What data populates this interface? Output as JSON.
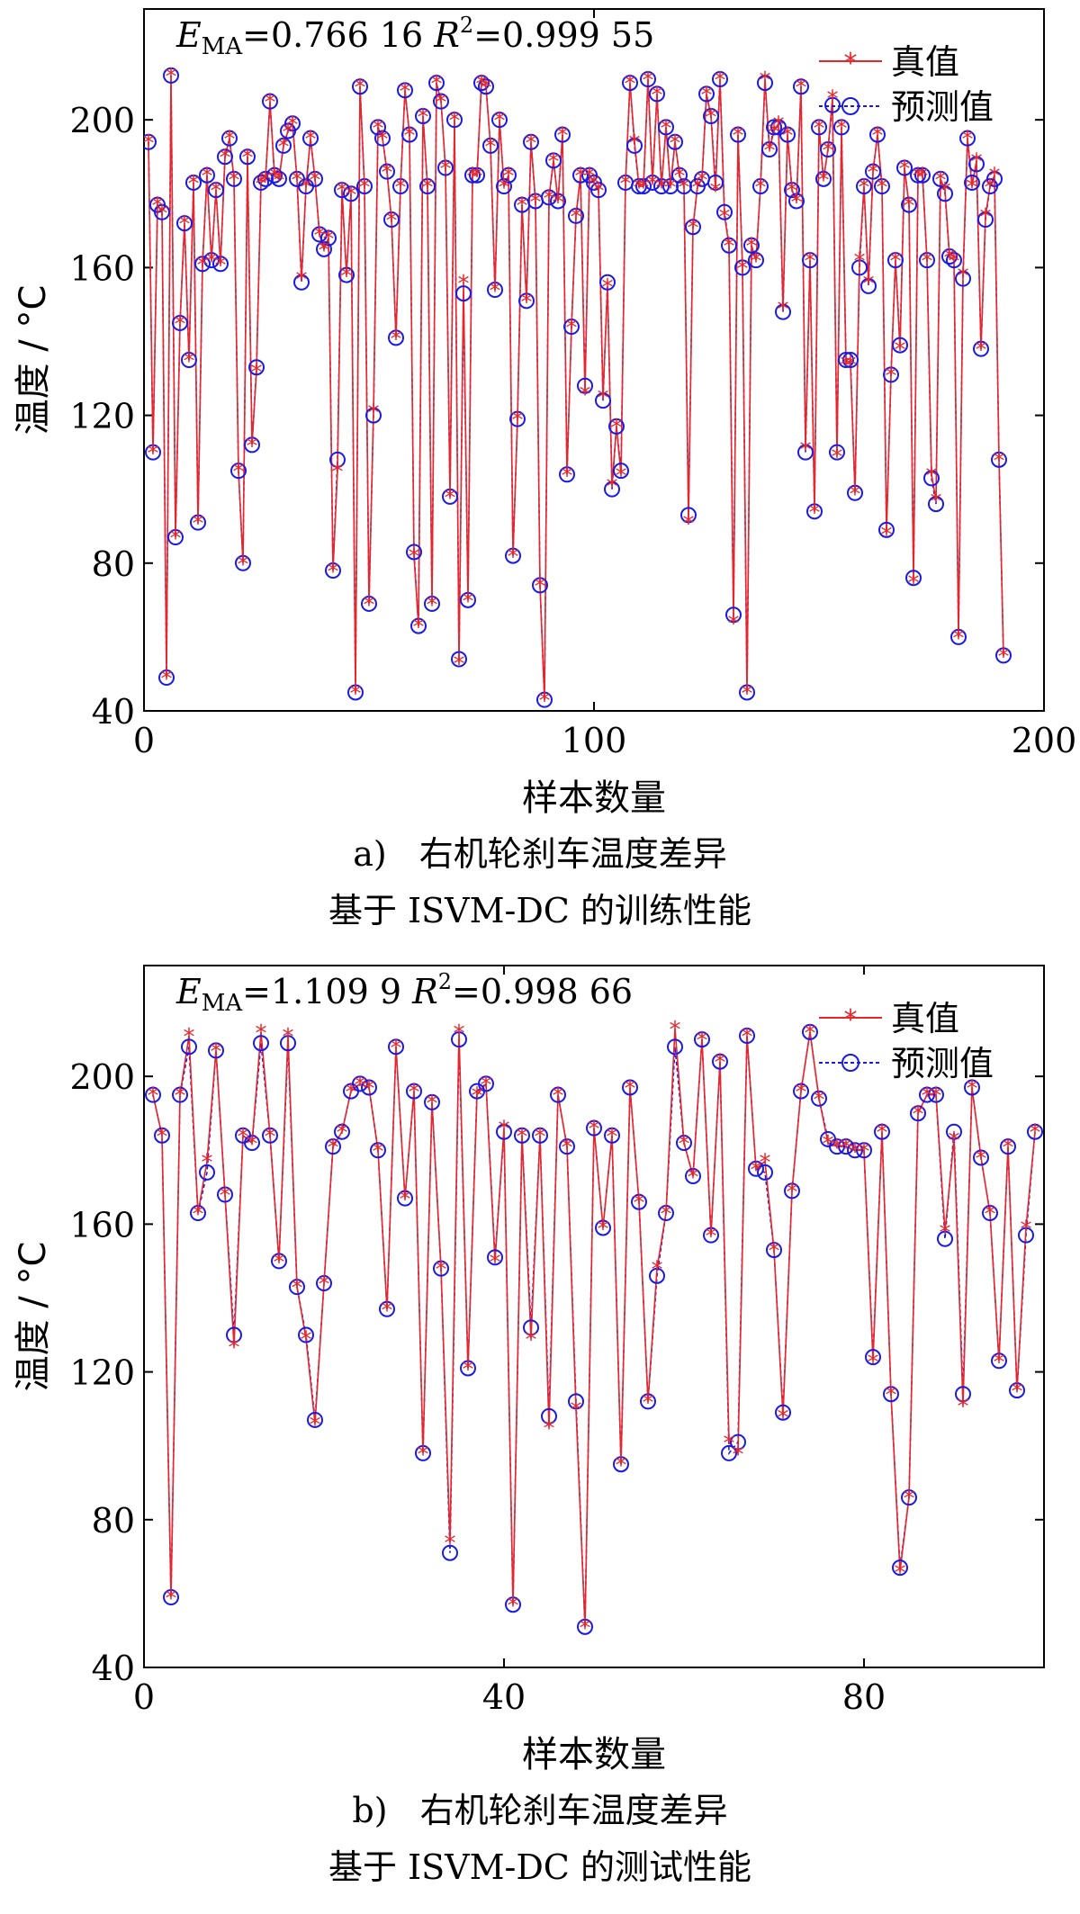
{
  "chart_data": [
    {
      "type": "line",
      "title": "E_MA=0.766 16 R²=0.999 55",
      "metrics": {
        "ema_label": "E",
        "ema_sub": "MA",
        "ema_value": "=0.766 16",
        "r2_label": "R",
        "r2_sup": "2",
        "r2_value": "=0.999 55"
      },
      "xlabel": "样本数量",
      "ylabel": "温度 / °C",
      "xlim": [
        0,
        200
      ],
      "ylim": [
        40,
        230
      ],
      "xticks": [
        0,
        100,
        200
      ],
      "xtick_labels": [
        "0",
        "100",
        "200"
      ],
      "yticks": [
        40,
        80,
        120,
        160,
        200
      ],
      "ytick_labels": [
        "40",
        "80",
        "120",
        "160",
        "200"
      ],
      "legend": {
        "position": "top-right",
        "entries": [
          "真值",
          "预测值"
        ]
      },
      "series": [
        {
          "name": "真值",
          "color": "#e8262a",
          "marker": "star",
          "values": [
            194,
            110,
            177,
            175,
            49,
            212,
            87,
            145,
            172,
            135,
            183,
            91,
            161,
            185,
            162,
            181,
            161,
            190,
            195,
            184,
            105,
            80,
            190,
            112,
            132,
            183,
            184,
            205,
            185,
            184,
            193,
            197,
            199,
            184,
            157,
            182,
            195,
            184,
            169,
            165,
            168,
            78,
            105,
            181,
            158,
            180,
            45,
            209,
            182,
            69,
            121,
            198,
            195,
            186,
            173,
            141,
            182,
            208,
            196,
            82,
            63,
            201,
            182,
            69,
            210,
            205,
            187,
            98,
            200,
            53,
            156,
            70,
            185,
            185,
            210,
            209,
            193,
            154,
            200,
            182,
            185,
            82,
            119,
            177,
            151,
            194,
            178,
            74,
            43,
            179,
            189,
            178,
            196,
            104,
            144,
            174,
            185,
            126,
            185,
            183,
            181,
            125,
            155,
            101,
            117,
            104,
            183,
            210,
            194,
            182,
            182,
            211,
            183,
            207,
            182,
            198,
            182,
            194,
            185,
            182,
            91,
            171,
            182,
            184,
            207,
            201,
            181,
            211,
            174,
            166,
            64,
            196,
            160,
            45,
            166,
            162,
            182,
            211,
            192,
            197,
            199,
            149,
            196,
            181,
            178,
            209,
            111,
            162,
            94,
            198,
            184,
            192,
            206,
            109,
            198,
            134,
            134,
            99,
            162,
            182,
            156,
            186,
            196,
            182,
            88,
            131,
            162,
            138,
            187,
            177,
            75,
            185,
            185,
            162,
            104,
            97,
            184,
            181,
            163,
            162,
            60,
            158,
            195,
            182,
            189,
            138,
            174,
            182,
            185,
            108,
            55
          ]
        },
        {
          "name": "预测值",
          "color": "#1a1ae6",
          "marker": "circle",
          "values": [
            194,
            110,
            177,
            175,
            49,
            212,
            87,
            145,
            172,
            135,
            183,
            91,
            161,
            185,
            162,
            181,
            161,
            190,
            195,
            184,
            105,
            80,
            190,
            112,
            133,
            183,
            184,
            205,
            185,
            184,
            193,
            197,
            199,
            184,
            156,
            182,
            195,
            184,
            169,
            165,
            168,
            78,
            108,
            181,
            158,
            180,
            45,
            209,
            182,
            69,
            120,
            198,
            195,
            186,
            173,
            141,
            182,
            208,
            196,
            83,
            63,
            201,
            182,
            69,
            210,
            205,
            187,
            98,
            200,
            54,
            153,
            70,
            185,
            185,
            210,
            209,
            193,
            154,
            200,
            182,
            185,
            82,
            119,
            177,
            151,
            194,
            178,
            74,
            43,
            179,
            189,
            178,
            196,
            104,
            144,
            174,
            185,
            128,
            185,
            183,
            181,
            124,
            156,
            100,
            117,
            105,
            183,
            210,
            193,
            182,
            182,
            211,
            183,
            207,
            182,
            198,
            182,
            194,
            185,
            182,
            93,
            171,
            182,
            184,
            207,
            201,
            183,
            211,
            175,
            166,
            66,
            196,
            160,
            45,
            166,
            162,
            182,
            210,
            192,
            198,
            198,
            148,
            196,
            181,
            178,
            209,
            110,
            162,
            94,
            198,
            184,
            192,
            204,
            110,
            198,
            135,
            135,
            99,
            160,
            182,
            155,
            186,
            196,
            182,
            89,
            131,
            162,
            139,
            187,
            177,
            76,
            185,
            185,
            162,
            103,
            96,
            184,
            180,
            163,
            162,
            60,
            157,
            195,
            183,
            188,
            138,
            173,
            182,
            184,
            108,
            55
          ]
        }
      ]
    },
    {
      "type": "line",
      "title": "E_MA=1.109 9 R²=0.998 66",
      "metrics": {
        "ema_label": "E",
        "ema_sub": "MA",
        "ema_value": "=1.109 9",
        "r2_label": "R",
        "r2_sup": "2",
        "r2_value": "=0.998 66"
      },
      "xlabel": "样本数量",
      "ylabel": "温度 / °C",
      "xlim": [
        0,
        100
      ],
      "ylim": [
        40,
        230
      ],
      "xticks": [
        0,
        40,
        80
      ],
      "xtick_labels": [
        "0",
        "40",
        "80"
      ],
      "yticks": [
        40,
        80,
        120,
        160,
        200
      ],
      "ytick_labels": [
        "40",
        "80",
        "120",
        "160",
        "200"
      ],
      "legend": {
        "position": "top-right",
        "entries": [
          "真值",
          "预测值"
        ]
      },
      "series": [
        {
          "name": "真值",
          "color": "#e8262a",
          "marker": "star",
          "values": [
            195,
            184,
            59,
            195,
            211,
            163,
            177,
            207,
            168,
            127,
            184,
            182,
            212,
            184,
            150,
            211,
            143,
            129,
            106,
            144,
            181,
            185,
            196,
            198,
            197,
            180,
            137,
            208,
            167,
            196,
            98,
            193,
            148,
            74,
            212,
            121,
            195,
            198,
            150,
            186,
            57,
            184,
            129,
            184,
            105,
            195,
            181,
            110,
            51,
            186,
            159,
            184,
            95,
            197,
            166,
            112,
            148,
            163,
            213,
            182,
            173,
            210,
            157,
            204,
            101,
            98,
            211,
            175,
            177,
            153,
            108,
            169,
            196,
            212,
            194,
            182,
            181,
            181,
            180,
            180,
            123,
            185,
            114,
            66,
            86,
            190,
            195,
            195,
            158,
            183,
            111,
            197,
            178,
            163,
            123,
            181,
            115,
            159,
            185
          ]
        },
        {
          "name": "预测值",
          "color": "#1a1ae6",
          "marker": "circle",
          "values": [
            195,
            184,
            59,
            195,
            208,
            163,
            174,
            207,
            168,
            130,
            184,
            182,
            209,
            184,
            150,
            209,
            143,
            130,
            107,
            144,
            181,
            185,
            196,
            198,
            197,
            180,
            137,
            208,
            167,
            196,
            98,
            193,
            148,
            71,
            210,
            121,
            196,
            198,
            151,
            185,
            57,
            184,
            132,
            184,
            108,
            195,
            181,
            112,
            51,
            186,
            159,
            184,
            95,
            197,
            166,
            112,
            146,
            163,
            208,
            182,
            173,
            210,
            157,
            204,
            98,
            101,
            211,
            175,
            174,
            153,
            109,
            169,
            196,
            212,
            194,
            183,
            181,
            181,
            180,
            180,
            124,
            185,
            114,
            67,
            86,
            190,
            195,
            195,
            156,
            185,
            114,
            197,
            178,
            163,
            123,
            181,
            115,
            157,
            185
          ]
        }
      ]
    }
  ],
  "captions": [
    {
      "prefix": "a)",
      "line1": "右机轮刹车温度差异",
      "line2": "基于 ISVM-DC 的训练性能"
    },
    {
      "prefix": "b)",
      "line1": "右机轮刹车温度差异",
      "line2": "基于 ISVM-DC 的测试性能"
    }
  ]
}
